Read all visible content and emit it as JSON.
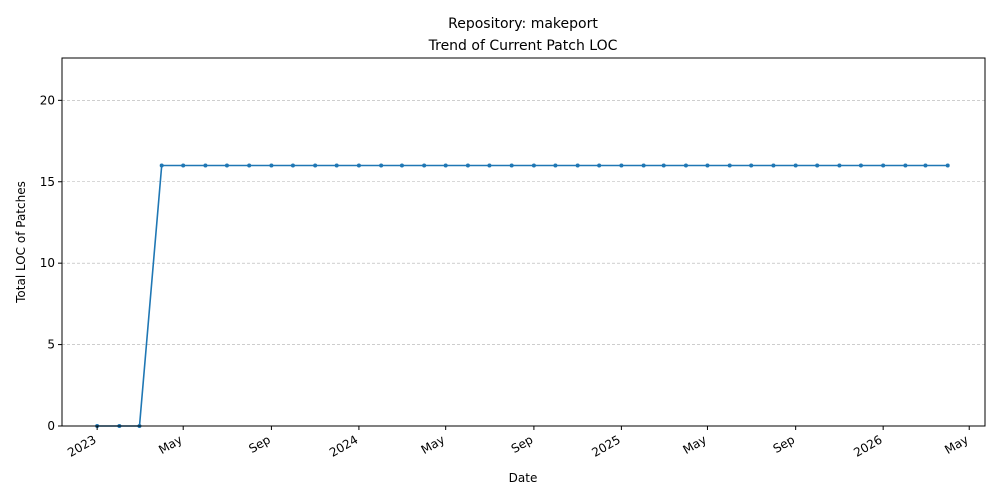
{
  "chart_data": {
    "type": "line",
    "title": "Repository: makeport",
    "subtitle": "Trend of Current Patch LOC",
    "xlabel": "Date",
    "ylabel": "Total LOC of Patches",
    "ylim": [
      0,
      22.6
    ],
    "xlim": [
      "2022-11-13",
      "2026-05-23"
    ],
    "grid": "y-dashed",
    "color": "#1f77b4",
    "y_ticks": [
      0,
      5,
      10,
      15,
      20
    ],
    "x_ticks": [
      {
        "date": "2023-01-01",
        "label": "2023"
      },
      {
        "date": "2023-05-01",
        "label": "May"
      },
      {
        "date": "2023-09-01",
        "label": "Sep"
      },
      {
        "date": "2024-01-01",
        "label": "2024"
      },
      {
        "date": "2024-05-01",
        "label": "May"
      },
      {
        "date": "2024-09-01",
        "label": "Sep"
      },
      {
        "date": "2025-01-01",
        "label": "2025"
      },
      {
        "date": "2025-05-01",
        "label": "May"
      },
      {
        "date": "2025-09-01",
        "label": "Sep"
      },
      {
        "date": "2026-01-01",
        "label": "2026"
      },
      {
        "date": "2026-05-01",
        "label": "May"
      }
    ],
    "series": [
      {
        "x": [
          "2023-01-01",
          "2023-02-01",
          "2023-03-01",
          "2023-04-01",
          "2023-05-01",
          "2023-06-01",
          "2023-07-01",
          "2023-08-01",
          "2023-09-01",
          "2023-10-01",
          "2023-11-01",
          "2023-12-01",
          "2024-01-01",
          "2024-02-01",
          "2024-03-01",
          "2024-04-01",
          "2024-05-01",
          "2024-06-01",
          "2024-07-01",
          "2024-08-01",
          "2024-09-01",
          "2024-10-01",
          "2024-11-01",
          "2024-12-01",
          "2025-01-01",
          "2025-02-01",
          "2025-03-01",
          "2025-04-01",
          "2025-05-01",
          "2025-06-01",
          "2025-07-01",
          "2025-08-01",
          "2025-09-01",
          "2025-10-01",
          "2025-11-01",
          "2025-12-01",
          "2026-01-01",
          "2026-02-01",
          "2026-03-01",
          "2026-04-01"
        ],
        "y": [
          0,
          0,
          0,
          16,
          16,
          16,
          16,
          16,
          16,
          16,
          16,
          16,
          16,
          16,
          16,
          16,
          16,
          16,
          16,
          16,
          16,
          16,
          16,
          16,
          16,
          16,
          16,
          16,
          16,
          16,
          16,
          16,
          16,
          16,
          16,
          16,
          16,
          16,
          16,
          16
        ]
      }
    ]
  }
}
